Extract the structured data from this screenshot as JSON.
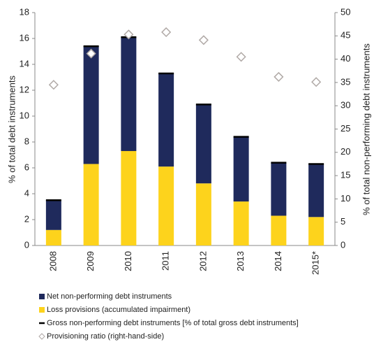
{
  "chart_data": {
    "type": "bar",
    "categories": [
      "2008",
      "2009",
      "2010",
      "2011",
      "2012",
      "2013",
      "2014",
      "2015*"
    ],
    "y_label": "% of total debt instruments",
    "y2_label": "% of total non-performing debt instruments",
    "ylim": [
      0,
      18
    ],
    "yticks": [
      0,
      2,
      4,
      6,
      8,
      10,
      12,
      14,
      16,
      18
    ],
    "y2lim": [
      0,
      50
    ],
    "y2ticks": [
      0,
      5,
      10,
      15,
      20,
      25,
      30,
      35,
      40,
      45,
      50
    ],
    "series": [
      {
        "name": "Net non-performing debt instruments",
        "color": "#1f2a5c",
        "marker": "stack",
        "values": [
          2.3,
          9.1,
          8.8,
          7.2,
          6.1,
          5.0,
          4.1,
          4.1
        ]
      },
      {
        "name": "Loss provisions (accumulated impairment)",
        "color": "#fdd31c",
        "marker": "stack",
        "values": [
          1.2,
          6.3,
          7.3,
          6.1,
          4.8,
          3.4,
          2.3,
          2.2
        ]
      },
      {
        "name": "Gross non-performing debt instruments [% of total gross debt instruments]",
        "color": "#000000",
        "marker": "dash",
        "values": [
          3.5,
          15.4,
          16.1,
          13.3,
          10.9,
          8.4,
          6.4,
          6.3
        ]
      },
      {
        "name": "Provisioning ratio (right-hand-side)",
        "color": "#b0a9a6",
        "marker": "diamond",
        "axis": "y2",
        "values": [
          34.5,
          41.2,
          45.3,
          45.8,
          44.1,
          40.5,
          36.2,
          35.1
        ]
      }
    ]
  }
}
